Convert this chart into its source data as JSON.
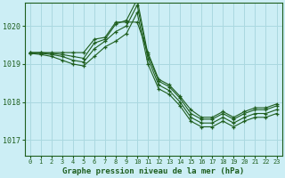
{
  "background_color": "#cceef5",
  "grid_color": "#aad8e0",
  "line_color": "#1e5e1e",
  "xlabel": "Graphe pression niveau de la mer (hPa)",
  "ylim": [
    1016.6,
    1020.6
  ],
  "xlim": [
    -0.5,
    23.5
  ],
  "yticks": [
    1017,
    1018,
    1019,
    1020
  ],
  "xticks": [
    0,
    1,
    2,
    3,
    4,
    5,
    6,
    7,
    8,
    9,
    10,
    11,
    12,
    13,
    14,
    15,
    16,
    17,
    18,
    19,
    20,
    21,
    22,
    23
  ],
  "series": [
    [
      1019.3,
      1019.3,
      1019.3,
      1019.3,
      1019.3,
      1019.3,
      1019.65,
      1019.7,
      1020.1,
      1020.1,
      1020.1,
      1019.3,
      1018.6,
      1018.45,
      1018.15,
      1017.8,
      1017.6,
      1017.6,
      1017.75,
      1017.6,
      1017.75,
      1017.85,
      1017.85,
      1017.95
    ],
    [
      1019.3,
      1019.3,
      1019.28,
      1019.25,
      1019.2,
      1019.15,
      1019.55,
      1019.65,
      1020.05,
      1020.15,
      1020.7,
      1019.25,
      1018.55,
      1018.4,
      1018.1,
      1017.7,
      1017.55,
      1017.55,
      1017.7,
      1017.55,
      1017.7,
      1017.8,
      1017.8,
      1017.9
    ],
    [
      1019.28,
      1019.28,
      1019.25,
      1019.2,
      1019.1,
      1019.05,
      1019.4,
      1019.6,
      1019.85,
      1020.0,
      1020.55,
      1019.15,
      1018.45,
      1018.3,
      1018.0,
      1017.6,
      1017.45,
      1017.45,
      1017.6,
      1017.45,
      1017.6,
      1017.7,
      1017.7,
      1017.8
    ],
    [
      1019.28,
      1019.25,
      1019.2,
      1019.1,
      1019.0,
      1018.95,
      1019.2,
      1019.45,
      1019.6,
      1019.8,
      1020.35,
      1019.0,
      1018.35,
      1018.2,
      1017.9,
      1017.5,
      1017.35,
      1017.35,
      1017.5,
      1017.35,
      1017.5,
      1017.6,
      1017.6,
      1017.7
    ]
  ],
  "figsize": [
    3.2,
    2.0
  ],
  "dpi": 100
}
